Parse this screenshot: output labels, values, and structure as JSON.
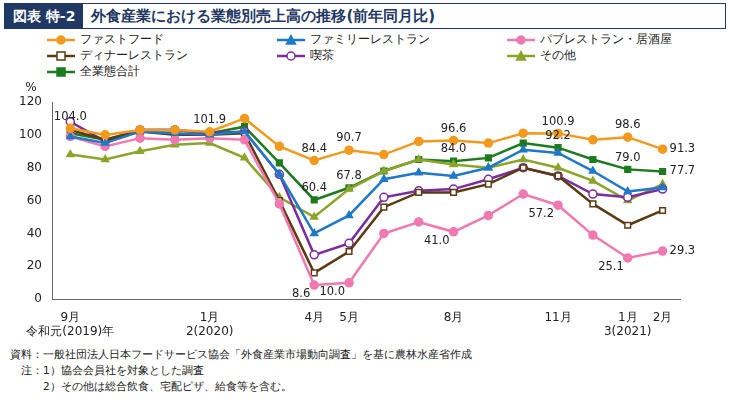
{
  "chart_data": {
    "type": "line",
    "figure_number": "図表 特-2",
    "title": "外食産業における業態別売上高の推移(前年同月比)",
    "y_label": "%",
    "categories": [
      "9月\n令和元(2019)年",
      null,
      null,
      null,
      "1月\n2(2020)",
      null,
      null,
      "4月",
      "5月",
      null,
      null,
      "8月",
      null,
      null,
      "11月",
      null,
      "1月\n3(2021)",
      "2月"
    ],
    "series": [
      {
        "name": "ファストフード",
        "color": "#f39a1e",
        "marker": "circle",
        "values": [
          104.0,
          100,
          103,
          103,
          101.9,
          110,
          93,
          84.4,
          90.7,
          88,
          96,
          96.6,
          95,
          101,
          100.9,
          97,
          98.6,
          91.3
        ],
        "value_labels": [
          "104.0",
          null,
          null,
          null,
          "101.9",
          null,
          null,
          "84.4",
          "90.7",
          null,
          null,
          "96.6",
          null,
          null,
          "100.9",
          null,
          "98.6",
          "91.3"
        ]
      },
      {
        "name": "ファミリーレストラン",
        "color": "#1f78c8",
        "marker": "triangle",
        "values": [
          99,
          95,
          102,
          101,
          100,
          102,
          76,
          40,
          51,
          73,
          77,
          75,
          80,
          91,
          89,
          78,
          65.5,
          68
        ]
      },
      {
        "name": "パブレストラン・居酒屋",
        "color": "#f07ab0",
        "marker": "circle",
        "values": [
          99,
          93,
          98,
          97,
          98,
          97,
          58,
          8.6,
          10.0,
          40,
          47,
          41.0,
          51,
          64,
          57.2,
          39,
          25.1,
          29.3
        ],
        "value_labels": [
          null,
          null,
          null,
          null,
          null,
          null,
          null,
          "8.6",
          "10.0",
          null,
          null,
          "41.0",
          null,
          null,
          "57.2",
          null,
          "25.1",
          "29.3"
        ]
      },
      {
        "name": "ディナーレストラン",
        "color": "#5c3a12",
        "marker": "square-open",
        "values": [
          103,
          97,
          102,
          100,
          100,
          101,
          60,
          16,
          29,
          56,
          65,
          65,
          70,
          80,
          75,
          58,
          45,
          54
        ]
      },
      {
        "name": "喫茶",
        "color": "#7b2c9e",
        "marker": "circle-open",
        "values": [
          108,
          96,
          103,
          103,
          101,
          102,
          76,
          27,
          34,
          62,
          66,
          67,
          73,
          80,
          75,
          64,
          62,
          67
        ]
      },
      {
        "name": "その他",
        "color": "#8aa52a",
        "marker": "triangle",
        "values": [
          88,
          85,
          90,
          94,
          95,
          86,
          62,
          50,
          67,
          78,
          85,
          82,
          80,
          85,
          80,
          72,
          60,
          70
        ]
      },
      {
        "name": "全業態合計",
        "color": "#1e7a1e",
        "marker": "square",
        "values": [
          101,
          97,
          103,
          103,
          101,
          105,
          83,
          60.4,
          67.8,
          78,
          85,
          84.0,
          86,
          95,
          92.2,
          85,
          79.0,
          77.7
        ],
        "value_labels": [
          null,
          null,
          null,
          null,
          null,
          null,
          null,
          "60.4",
          "67.8",
          null,
          null,
          "84.0",
          null,
          null,
          "92.2",
          null,
          "79.0",
          "77.7"
        ]
      }
    ],
    "ylim": [
      0,
      120
    ],
    "yticks": [
      0,
      20,
      40,
      60,
      80,
      100,
      120
    ],
    "grid": false,
    "data_labels": true,
    "notes": [
      "資料：一般社団法人日本フードサービス協会「外食産業市場動向調査」を基に農林水産省作成",
      "　注：1）協会会員社を対象とした調査",
      "　　　2）その他は総合飲食、宅配ピザ、給食等を含む。"
    ]
  }
}
